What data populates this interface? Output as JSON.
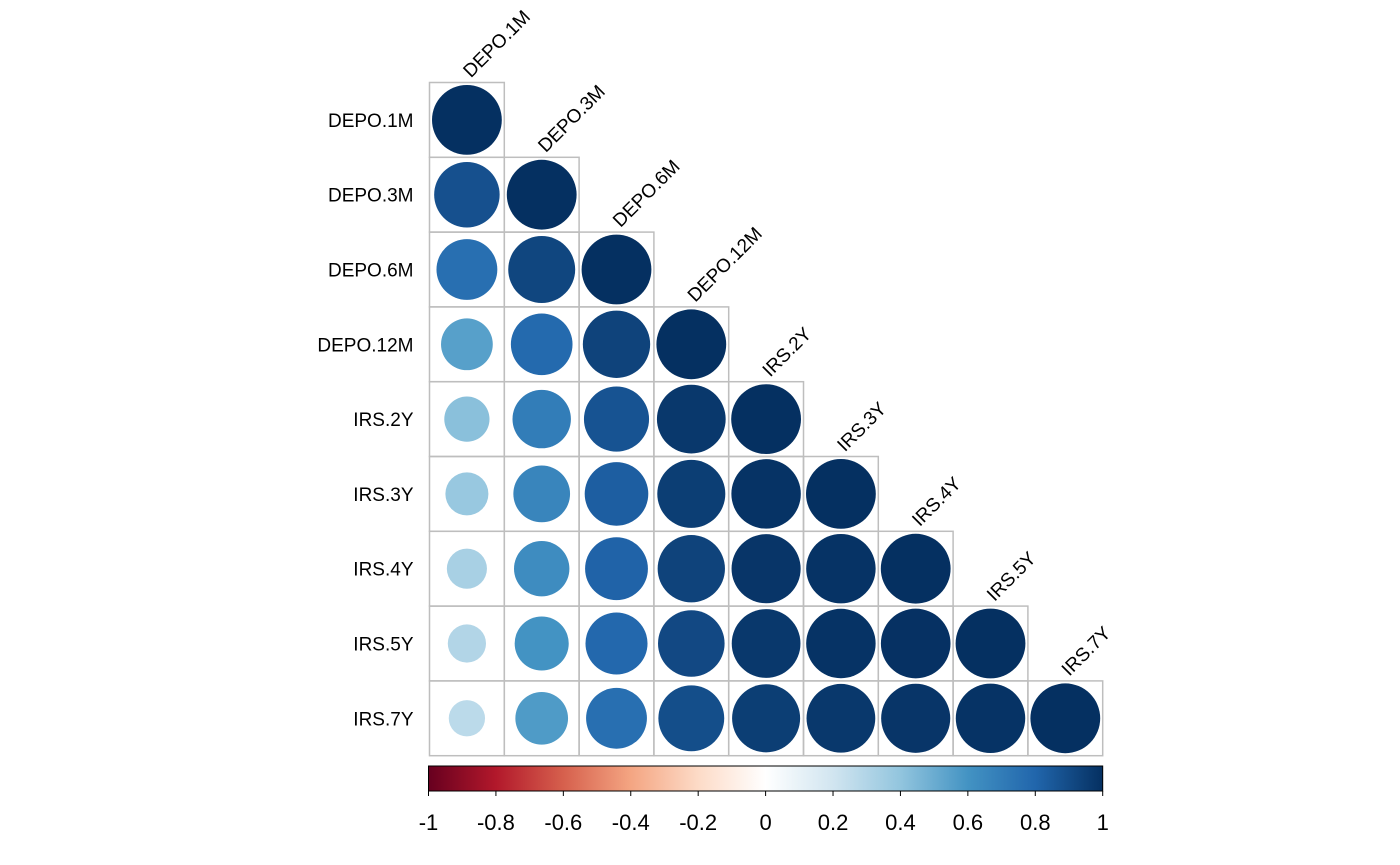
{
  "chart_data": {
    "type": "heatmap",
    "layout": "lower-triangular correlation matrix, circle glyphs",
    "variables": [
      "DEPO.1M",
      "DEPO.3M",
      "DEPO.6M",
      "DEPO.12M",
      "IRS.2Y",
      "IRS.3Y",
      "IRS.4Y",
      "IRS.5Y",
      "IRS.7Y"
    ],
    "matrix": [
      [
        1.0
      ],
      [
        0.88,
        1.0
      ],
      [
        0.76,
        0.92,
        1.0
      ],
      [
        0.55,
        0.78,
        0.93,
        1.0
      ],
      [
        0.42,
        0.7,
        0.87,
        0.97,
        1.0
      ],
      [
        0.38,
        0.66,
        0.83,
        0.95,
        0.99,
        1.0
      ],
      [
        0.33,
        0.63,
        0.81,
        0.93,
        0.98,
        0.99,
        1.0
      ],
      [
        0.3,
        0.6,
        0.79,
        0.91,
        0.97,
        0.99,
        0.995,
        1.0
      ],
      [
        0.27,
        0.57,
        0.76,
        0.89,
        0.95,
        0.97,
        0.98,
        0.99,
        1.0
      ]
    ],
    "colorbar": {
      "min": -1,
      "max": 1,
      "ticks": [
        "-1",
        "-0.8",
        "-0.6",
        "-0.4",
        "-0.2",
        "0",
        "0.2",
        "0.4",
        "0.6",
        "0.8",
        "1"
      ],
      "tick_values": [
        -1,
        -0.8,
        -0.6,
        -0.4,
        -0.2,
        0,
        0.2,
        0.4,
        0.6,
        0.8,
        1
      ],
      "palette": [
        "#67001F",
        "#B2182B",
        "#D6604D",
        "#F4A582",
        "#FDDBC7",
        "#FFFFFF",
        "#D1E5F0",
        "#92C5DE",
        "#4393C3",
        "#2166AC",
        "#053061"
      ]
    },
    "grid_color": "#BEBEBE"
  }
}
